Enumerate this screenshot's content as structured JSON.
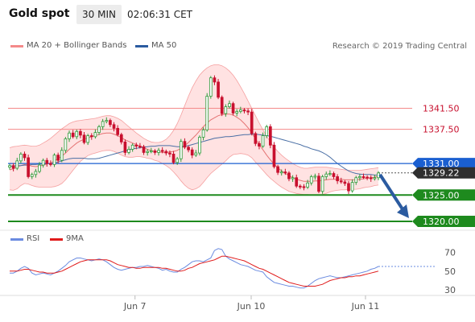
{
  "header": {
    "title": "Gold spot",
    "timeframe": "30 MIN",
    "time": "02:06:31 CET"
  },
  "legend": {
    "ma_bb": "MA 20 + Bollinger Bands",
    "ma50": "MA 50",
    "credit": "Research © 2019 Trading Central",
    "rsi": "RSI",
    "ma9": "9MA"
  },
  "colors": {
    "bullish": "#2e9b3a",
    "bearish": "#c8102e",
    "ma20": "#e57373",
    "band_fill": "#ffd8d8",
    "ma50": "#4a6fa5",
    "resistance": "#f48a8a",
    "pivot": "#1a5fd1",
    "support": "#1e8a1e",
    "arrow": "#2b5ba0",
    "rsi": "#6a8be0",
    "rsi_ma": "#e01a1a"
  },
  "chart_data": [
    {
      "type": "candlestick",
      "ylim": [
        1318,
        1352
      ],
      "x_ticks": [
        "Jun 7",
        "Jun 10",
        "Jun 11"
      ],
      "levels": [
        {
          "label": "1341.50",
          "value": 1341.5,
          "kind": "resistance"
        },
        {
          "label": "1337.50",
          "value": 1337.5,
          "kind": "resistance"
        },
        {
          "label": "1331.00",
          "value": 1331.0,
          "kind": "pivot"
        },
        {
          "label": "1329.22",
          "value": 1329.22,
          "kind": "last"
        },
        {
          "label": "1325.00",
          "value": 1325.0,
          "kind": "support"
        },
        {
          "label": "1320.00",
          "value": 1320.0,
          "kind": "support"
        }
      ],
      "series": [
        {
          "name": "Price",
          "values": [
            1330.6,
            1330.1,
            1331.5,
            1332.8,
            1332.1,
            1328.5,
            1328.9,
            1329.5,
            1330.7,
            1331.6,
            1331.0,
            1330.8,
            1332.6,
            1331.6,
            1333.5,
            1335.7,
            1336.8,
            1336.1,
            1337.1,
            1336.4,
            1335.0,
            1336.3,
            1336.1,
            1336.9,
            1338.0,
            1339.0,
            1339.2,
            1338.4,
            1337.7,
            1336.5,
            1335.1,
            1333.1,
            1333.7,
            1334.5,
            1334.3,
            1334.2,
            1333.1,
            1333.3,
            1333.4,
            1333.1,
            1333.5,
            1333.3,
            1333.0,
            1332.8,
            1331.2,
            1331.9,
            1335.2,
            1334.1,
            1333.6,
            1332.6,
            1333.0,
            1336.0,
            1337.4,
            1343.8,
            1347.3,
            1346.5,
            1343.6,
            1340.5,
            1341.8,
            1342.4,
            1340.6,
            1340.9,
            1341.2,
            1341.0,
            1340.8,
            1336.7,
            1334.8,
            1334.3,
            1336.3,
            1338.0,
            1334.5,
            1330.4,
            1329.3,
            1329.4,
            1329.2,
            1328.1,
            1328.3,
            1326.7,
            1326.6,
            1326.5,
            1327.3,
            1328.5,
            1328.6,
            1325.7,
            1328.5,
            1329.0,
            1329.1,
            1328.5,
            1327.7,
            1327.5,
            1327.2,
            1325.8,
            1327.4,
            1328.3,
            1328.5,
            1328.4,
            1328.3,
            1328.1,
            1328.3,
            1329.2
          ]
        }
      ],
      "ma20": [
        1329.8,
        1330.0,
        1330.3,
        1330.6,
        1330.8,
        1330.7,
        1330.5,
        1330.4,
        1330.5,
        1330.7,
        1330.9,
        1331.1,
        1331.5,
        1331.9,
        1332.4,
        1333.0,
        1333.7,
        1334.3,
        1334.9,
        1335.3,
        1335.6,
        1335.9,
        1336.1,
        1336.3,
        1336.5,
        1336.7,
        1336.8,
        1336.8,
        1336.6,
        1336.3,
        1335.9,
        1335.5,
        1335.2,
        1334.9,
        1334.6,
        1334.3,
        1334.0,
        1333.7,
        1333.5,
        1333.3,
        1333.2,
        1333.1,
        1333.1,
        1333.2,
        1333.3,
        1333.5,
        1333.9,
        1334.4,
        1335.0,
        1335.7,
        1336.4,
        1337.2,
        1338.0,
        1338.7,
        1339.3,
        1339.7,
        1340.1,
        1340.3,
        1340.4,
        1340.4,
        1340.2,
        1339.8,
        1339.3,
        1338.6,
        1337.8,
        1336.8,
        1335.7,
        1334.6,
        1333.6,
        1332.6,
        1331.7,
        1330.9,
        1330.2,
        1329.6,
        1329.1,
        1328.7,
        1328.3,
        1328.0,
        1327.8,
        1327.6,
        1327.6,
        1327.6,
        1327.7,
        1327.7,
        1327.8,
        1327.9,
        1328.0,
        1328.0,
        1328.0,
        1328.0,
        1327.9,
        1327.9,
        1327.9,
        1327.9,
        1328.0,
        1328.1,
        1328.2,
        1328.3,
        1328.4,
        1328.6
      ],
      "band_upper": [
        1334.0,
        1334.2,
        1334.3,
        1334.4,
        1334.5,
        1334.4,
        1334.3,
        1334.3,
        1334.5,
        1334.9,
        1335.3,
        1335.8,
        1336.4,
        1337.0,
        1337.6,
        1338.1,
        1338.6,
        1338.9,
        1339.1,
        1339.2,
        1339.3,
        1339.4,
        1339.5,
        1339.6,
        1339.8,
        1340.0,
        1340.1,
        1340.1,
        1339.9,
        1339.6,
        1339.2,
        1338.6,
        1338.0,
        1337.4,
        1336.8,
        1336.3,
        1335.8,
        1335.4,
        1335.1,
        1335.0,
        1335.0,
        1335.2,
        1335.6,
        1336.3,
        1337.3,
        1338.6,
        1340.2,
        1342.0,
        1343.8,
        1345.4,
        1346.7,
        1347.8,
        1348.6,
        1349.2,
        1349.6,
        1349.8,
        1349.8,
        1349.6,
        1349.2,
        1348.6,
        1347.8,
        1346.8,
        1345.6,
        1344.3,
        1342.9,
        1341.5,
        1340.1,
        1338.7,
        1337.4,
        1336.2,
        1335.1,
        1334.1,
        1333.3,
        1332.6,
        1332.0,
        1331.5,
        1331.0,
        1330.6,
        1330.3,
        1330.1,
        1330.1,
        1330.2,
        1330.3,
        1330.3,
        1330.3,
        1330.3,
        1330.2,
        1330.1,
        1330.0,
        1329.9,
        1329.8,
        1329.7,
        1329.7,
        1329.7,
        1329.7,
        1329.8,
        1329.9,
        1330.0,
        1330.1,
        1330.2
      ],
      "band_lower": [
        1326.0,
        1325.9,
        1326.2,
        1326.8,
        1327.2,
        1327.1,
        1326.8,
        1326.6,
        1326.5,
        1326.5,
        1326.5,
        1326.5,
        1326.6,
        1326.8,
        1327.2,
        1327.9,
        1328.8,
        1329.7,
        1330.6,
        1331.4,
        1332.0,
        1332.5,
        1332.8,
        1333.0,
        1333.2,
        1333.4,
        1333.5,
        1333.5,
        1333.3,
        1333.0,
        1332.6,
        1332.3,
        1332.2,
        1332.2,
        1332.3,
        1332.3,
        1332.2,
        1332.0,
        1331.9,
        1331.6,
        1331.4,
        1331.0,
        1330.6,
        1330.1,
        1329.4,
        1328.6,
        1327.7,
        1326.9,
        1326.3,
        1326.0,
        1326.2,
        1326.6,
        1327.4,
        1328.3,
        1329.1,
        1329.7,
        1330.3,
        1330.9,
        1331.5,
        1332.2,
        1332.7,
        1332.8,
        1332.9,
        1332.8,
        1332.6,
        1332.1,
        1331.3,
        1330.5,
        1329.7,
        1328.9,
        1328.2,
        1327.6,
        1327.0,
        1326.5,
        1326.1,
        1325.7,
        1325.5,
        1325.3,
        1325.2,
        1325.1,
        1325.1,
        1325.0,
        1325.0,
        1325.0,
        1325.1,
        1325.3,
        1325.6,
        1325.8,
        1325.9,
        1326.0,
        1326.0,
        1326.1,
        1326.1,
        1326.1,
        1326.2,
        1326.4,
        1326.5,
        1326.6,
        1326.8,
        1326.9
      ],
      "ma50": [
        1330.5,
        1330.5,
        1330.6,
        1330.6,
        1330.7,
        1330.7,
        1330.8,
        1330.8,
        1330.9,
        1330.9,
        1331.0,
        1331.0,
        1331.1,
        1331.3,
        1331.5,
        1331.7,
        1331.9,
        1332.0,
        1332.0,
        1332.0,
        1332.0,
        1331.9,
        1331.9,
        1331.9,
        1332.0,
        1332.2,
        1332.4,
        1332.6,
        1332.8,
        1333.0,
        1333.2,
        1333.4,
        1333.6,
        1333.8,
        1333.9,
        1334.0,
        1334.1,
        1334.2,
        1334.3,
        1334.3,
        1334.4,
        1334.4,
        1334.4,
        1334.4,
        1334.3,
        1334.2,
        1334.2,
        1334.3,
        1334.4,
        1334.6,
        1334.8,
        1335.0,
        1335.2,
        1335.4,
        1335.6,
        1335.8,
        1335.9,
        1336.0,
        1336.1,
        1336.1,
        1336.2,
        1336.3,
        1336.4,
        1336.5,
        1336.5,
        1336.6,
        1336.6,
        1336.5,
        1336.4,
        1336.3,
        1336.2,
        1336.0,
        1335.8,
        1335.6,
        1335.4,
        1335.2,
        1335.0,
        1334.8,
        1334.6,
        1334.3,
        1334.1,
        1333.8,
        1333.6,
        1333.4,
        1333.1,
        1332.7,
        1332.2,
        1331.6,
        1331.0,
        1330.5,
        1330.0,
        1329.6,
        1329.3,
        1329.1,
        1329.0,
        1328.9,
        1328.9,
        1328.9,
        1328.8,
        1328.8
      ]
    },
    {
      "type": "line",
      "ylim": [
        25,
        85
      ],
      "yticks": [
        70,
        50,
        30
      ],
      "series": [
        {
          "name": "RSI",
          "values": [
            48,
            48,
            50,
            53,
            55,
            53,
            48,
            46,
            47,
            48,
            47,
            46,
            48,
            50,
            53,
            56,
            60,
            62,
            64,
            64,
            63,
            62,
            61,
            62,
            63,
            62,
            60,
            57,
            54,
            52,
            51,
            52,
            53,
            54,
            54,
            55,
            55,
            56,
            55,
            54,
            53,
            51,
            52,
            50,
            49,
            49,
            52,
            54,
            57,
            60,
            61,
            61,
            60,
            62,
            64,
            72,
            74,
            73,
            66,
            63,
            61,
            59,
            57,
            56,
            55,
            53,
            51,
            50,
            49,
            44,
            41,
            38,
            37,
            36,
            35,
            34,
            34,
            33,
            32,
            32,
            34,
            37,
            40,
            42,
            43,
            44,
            45,
            44,
            43,
            43,
            44,
            45,
            46,
            47,
            48,
            49,
            50,
            52,
            53,
            55
          ]
        },
        {
          "name": "9MA",
          "values": [
            50,
            50,
            50,
            51,
            52,
            52,
            51,
            50,
            49,
            49,
            48,
            48,
            48,
            49,
            50,
            52,
            54,
            56,
            58,
            60,
            61,
            62,
            62,
            62,
            62,
            62,
            62,
            61,
            59,
            57,
            56,
            55,
            54,
            54,
            53,
            53,
            54,
            54,
            54,
            54,
            54,
            53,
            53,
            52,
            51,
            50,
            50,
            51,
            53,
            54,
            56,
            58,
            59,
            60,
            61,
            62,
            64,
            66,
            66,
            65,
            64,
            63,
            62,
            61,
            59,
            57,
            55,
            53,
            52,
            50,
            48,
            46,
            44,
            42,
            40,
            38,
            37,
            36,
            35,
            34,
            34,
            34,
            34,
            35,
            36,
            38,
            40,
            41,
            42,
            43,
            43,
            44,
            44,
            45,
            45,
            46,
            47,
            48,
            49,
            50
          ]
        }
      ]
    }
  ]
}
